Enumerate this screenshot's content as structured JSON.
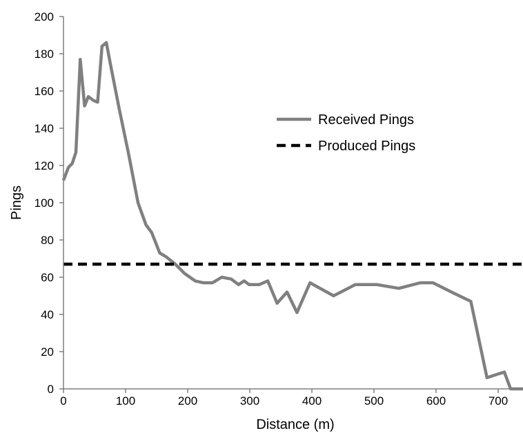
{
  "chart_data": {
    "type": "line",
    "title": "",
    "xlabel": "Distance (m)",
    "ylabel": "Pings",
    "xlim": [
      0,
      740
    ],
    "ylim": [
      0,
      200
    ],
    "x_ticks": [
      0,
      100,
      200,
      300,
      400,
      500,
      600,
      700
    ],
    "y_ticks": [
      0,
      20,
      40,
      60,
      80,
      100,
      120,
      140,
      160,
      180,
      200
    ],
    "grid": false,
    "legend": "center-right",
    "series": [
      {
        "name": "Received Pings",
        "color": "#808080",
        "style": "solid",
        "x": [
          0,
          8,
          14,
          20,
          27,
          34,
          40,
          48,
          55,
          62,
          69,
          77,
          90,
          105,
          120,
          133,
          142,
          155,
          165,
          180,
          195,
          212,
          225,
          240,
          255,
          270,
          282,
          291,
          299,
          315,
          329,
          344,
          360,
          376,
          397,
          435,
          470,
          505,
          540,
          575,
          595,
          625,
          656,
          682,
          700,
          710,
          720,
          740
        ],
        "y": [
          112,
          119,
          121,
          127,
          177,
          152,
          157,
          155,
          154,
          184,
          186,
          172,
          150,
          126,
          100,
          88,
          84,
          73,
          71,
          67,
          62,
          58,
          57,
          57,
          60,
          59,
          56,
          58,
          56,
          56,
          58,
          46,
          52,
          41,
          57,
          50,
          56,
          56,
          54,
          57,
          57,
          52,
          47,
          6,
          8,
          9,
          0,
          0
        ]
      },
      {
        "name": "Produced Pings",
        "color": "#000000",
        "style": "dashed",
        "x": [
          0,
          740
        ],
        "y": [
          67,
          67
        ]
      }
    ]
  }
}
